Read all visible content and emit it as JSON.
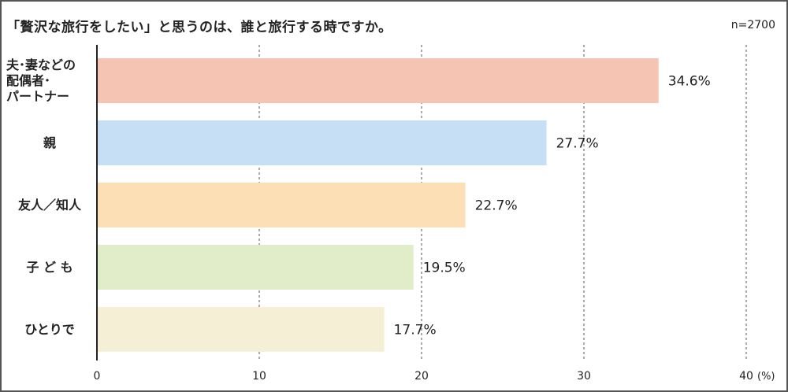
{
  "chart_data": {
    "type": "bar",
    "orientation": "horizontal",
    "title": "「贅沢な旅行をしたい」と思うのは、誰と旅行する時ですか。",
    "sample_size": "n=2700",
    "categories": [
      "夫･妻などの\n配偶者･\nパートナー",
      "親",
      "友人／知人",
      "子 ど も",
      "ひとりで"
    ],
    "values": [
      34.6,
      27.7,
      22.7,
      19.5,
      17.7
    ],
    "value_labels": [
      "34.6%",
      "27.7%",
      "22.7%",
      "19.5%",
      "17.7%"
    ],
    "bar_colors": [
      "#f6c4b2",
      "#c7dff4",
      "#fcdfb5",
      "#e0edc8",
      "#f5efd6"
    ],
    "xlim": [
      0,
      40
    ],
    "xticks": [
      "0",
      "10",
      "20",
      "30",
      "40"
    ],
    "x_unit": "(%)",
    "grid": "vertical dashed"
  }
}
